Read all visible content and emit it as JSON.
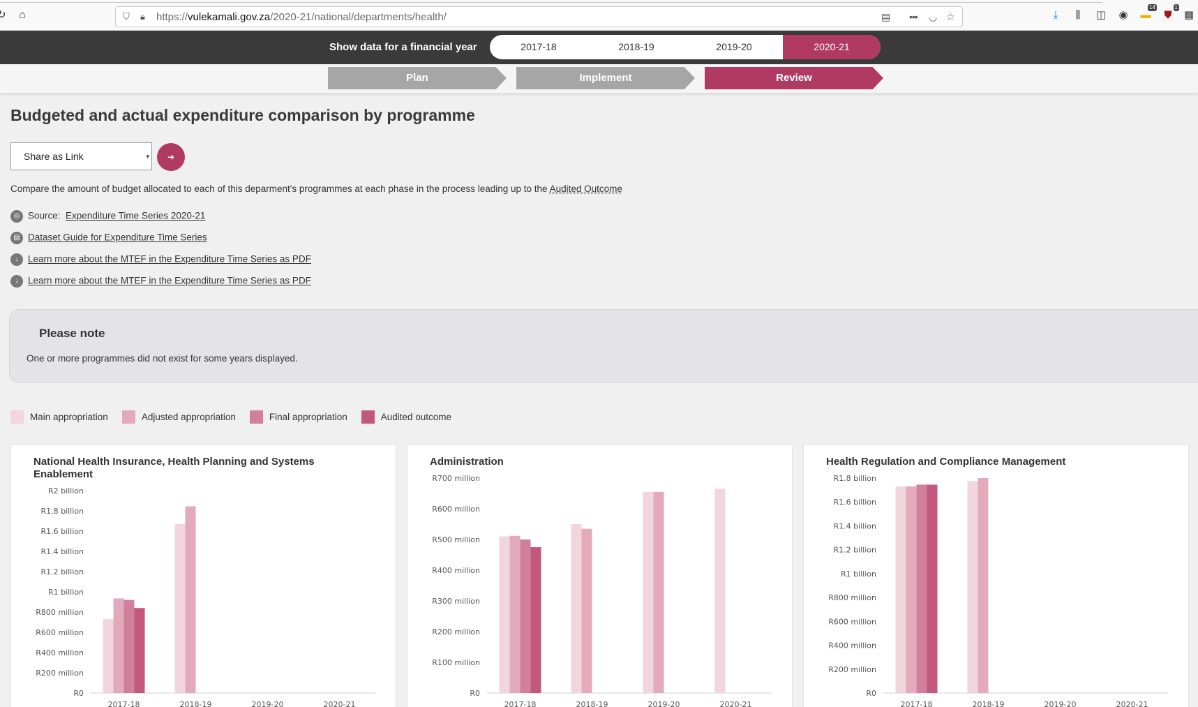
{
  "browser": {
    "url_prefix": "https://",
    "url_host": "vulekamali.gov.za",
    "url_path": "/2020-21/national/departments/health/",
    "more_label": "•••",
    "badge_a": "14",
    "badge_b": "1"
  },
  "fy_bar": {
    "label": "Show data for a financial year",
    "years": [
      "2017-18",
      "2018-19",
      "2019-20",
      "2020-21"
    ],
    "active": "2020-21"
  },
  "phases": [
    {
      "label": "Plan",
      "active": false
    },
    {
      "label": "Implement",
      "active": false
    },
    {
      "label": "Review",
      "active": true
    }
  ],
  "page": {
    "title": "Budgeted and actual expenditure comparison by programme",
    "share_select": "Share as Link",
    "description": "Compare the amount of budget allocated to each of this deparment's programmes at each phase in the process leading up to the ",
    "description_link": "Audited Outcome",
    "source_label": "Source:",
    "source_link": "Expenditure Time Series 2020-21",
    "dataset_guide": "Dataset Guide for Expenditure Time Series",
    "mtef_pdf_1": "Learn more about the MTEF in the Expenditure Time Series as PDF",
    "mtef_pdf_2": "Learn more about the MTEF in the Expenditure Time Series as PDF"
  },
  "note": {
    "title": "Please note",
    "text": "One or more programmes did not exist for some years displayed."
  },
  "legend": [
    {
      "label": "Main appropriation",
      "color": "#f2d5de"
    },
    {
      "label": "Adjusted appropriation",
      "color": "#e3aabc"
    },
    {
      "label": "Final appropriation",
      "color": "#d1809c"
    },
    {
      "label": "Audited outcome",
      "color": "#c2587c"
    }
  ],
  "chart_data": [
    {
      "type": "bar",
      "title": "National Health Insurance, Health Planning and Systems Enablement",
      "categories": [
        "2017-18",
        "2018-19",
        "2019-20",
        "2020-21"
      ],
      "ylim": [
        0,
        2000
      ],
      "yticks": [
        0,
        200,
        400,
        600,
        800,
        1000,
        1200,
        1400,
        1600,
        1800,
        2000
      ],
      "ytick_labels": [
        "R0",
        "R200 million",
        "R400 million",
        "R600 million",
        "R800 million",
        "R1 billion",
        "R1.2 billion",
        "R1.4 billion",
        "R1.6 billion",
        "R1.8 billion",
        "R2 billion"
      ],
      "series": [
        {
          "name": "Main appropriation",
          "values": [
            730,
            1670,
            null,
            null
          ]
        },
        {
          "name": "Adjusted appropriation",
          "values": [
            935,
            1845,
            null,
            null
          ]
        },
        {
          "name": "Final appropriation",
          "values": [
            920,
            null,
            null,
            null
          ]
        },
        {
          "name": "Audited outcome",
          "values": [
            840,
            null,
            null,
            null
          ]
        }
      ]
    },
    {
      "type": "bar",
      "title": "Administration",
      "categories": [
        "2017-18",
        "2018-19",
        "2019-20",
        "2020-21"
      ],
      "ylim": [
        0,
        700
      ],
      "yticks": [
        0,
        100,
        200,
        300,
        400,
        500,
        600,
        700
      ],
      "ytick_labels": [
        "R0",
        "R100 million",
        "R200 million",
        "R300 million",
        "R400 million",
        "R500 million",
        "R600 million",
        "R700 million"
      ],
      "series": [
        {
          "name": "Main appropriation",
          "values": [
            510,
            550,
            655,
            665
          ]
        },
        {
          "name": "Adjusted appropriation",
          "values": [
            512,
            535,
            655,
            null
          ]
        },
        {
          "name": "Final appropriation",
          "values": [
            500,
            null,
            null,
            null
          ]
        },
        {
          "name": "Audited outcome",
          "values": [
            475,
            null,
            null,
            null
          ]
        }
      ]
    },
    {
      "type": "bar",
      "title": "Health Regulation and Compliance Management",
      "categories": [
        "2017-18",
        "2018-19",
        "2019-20",
        "2020-21"
      ],
      "ylim": [
        0,
        1800
      ],
      "yticks": [
        0,
        200,
        400,
        600,
        800,
        1000,
        1200,
        1400,
        1600,
        1800
      ],
      "ytick_labels": [
        "R0",
        "R200 million",
        "R400 million",
        "R600 million",
        "R800 million",
        "R1 billion",
        "R1.2 billion",
        "R1.4 billion",
        "R1.6 billion",
        "R1.8 billion"
      ],
      "series": [
        {
          "name": "Main appropriation",
          "values": [
            1730,
            1775,
            null,
            null
          ]
        },
        {
          "name": "Adjusted appropriation",
          "values": [
            1730,
            1800,
            null,
            null
          ]
        },
        {
          "name": "Final appropriation",
          "values": [
            1745,
            null,
            null,
            null
          ]
        },
        {
          "name": "Audited outcome",
          "values": [
            1745,
            null,
            null,
            null
          ]
        }
      ]
    }
  ]
}
